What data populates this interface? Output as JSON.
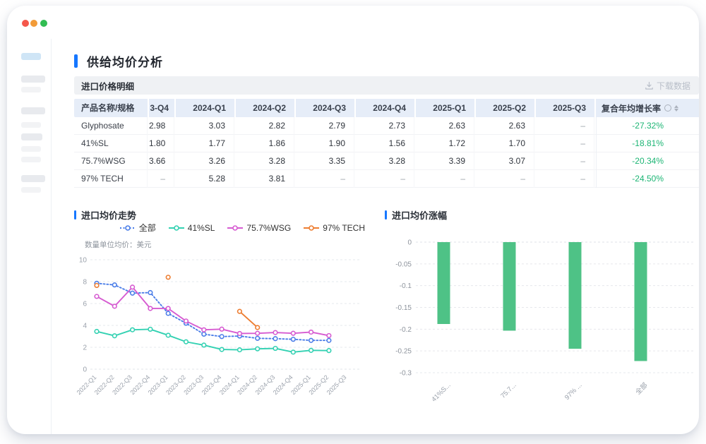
{
  "page_title": "供给均价分析",
  "colors": {
    "accent": "#1677ff",
    "positive_green_text": "#1cb574",
    "bar_green": "#4ec286",
    "table_header_bg": "#e6edf8",
    "traffic_red": "#f4574b",
    "traffic_orange": "#f29b38",
    "traffic_green": "#31bd52"
  },
  "table": {
    "section_title": "进口价格明细",
    "download_label": "下载数据",
    "columns": [
      "产品名称/规格",
      "3-Q4",
      "2024-Q1",
      "2024-Q2",
      "2024-Q3",
      "2024-Q4",
      "2025-Q1",
      "2025-Q2",
      "2025-Q3",
      "复合年均增长率"
    ],
    "rows": [
      {
        "name": "Glyphosate",
        "values": [
          "2.98",
          "3.03",
          "2.82",
          "2.79",
          "2.73",
          "2.63",
          "2.63",
          "–"
        ],
        "cagr": "-27.32%"
      },
      {
        "name": "41%SL",
        "values": [
          "1.80",
          "1.77",
          "1.86",
          "1.90",
          "1.56",
          "1.72",
          "1.70",
          "–"
        ],
        "cagr": "-18.81%"
      },
      {
        "name": "75.7%WSG",
        "values": [
          "3.66",
          "3.26",
          "3.28",
          "3.35",
          "3.28",
          "3.39",
          "3.07",
          "–"
        ],
        "cagr": "-20.34%"
      },
      {
        "name": "97% TECH",
        "values": [
          "–",
          "5.28",
          "3.81",
          "–",
          "–",
          "–",
          "–",
          "–"
        ],
        "cagr": "-24.50%"
      }
    ]
  },
  "chart_data": [
    {
      "type": "line",
      "title": "进口均价走势",
      "unit_note": "数量单位均价：美元",
      "categories": [
        "2022-Q1",
        "2022-Q2",
        "2022-Q3",
        "2022-Q4",
        "2023-Q1",
        "2023-Q2",
        "2023-Q3",
        "2023-Q4",
        "2024-Q1",
        "2024-Q2",
        "2024-Q3",
        "2024-Q4",
        "2025-Q1",
        "2025-Q2",
        "2025-Q3"
      ],
      "ylim": [
        0,
        10
      ],
      "yticks": [
        0,
        2,
        4,
        6,
        8,
        10
      ],
      "grid": "dashed",
      "legend_position": "top-right",
      "series": [
        {
          "name": "全部",
          "color": "#4a7de8",
          "style": "dotted",
          "values": [
            7.85,
            7.7,
            6.95,
            7.0,
            5.1,
            4.2,
            3.2,
            2.98,
            3.03,
            2.82,
            2.79,
            2.73,
            2.63,
            2.63,
            null
          ]
        },
        {
          "name": "41%SL",
          "color": "#33d1b2",
          "style": "solid",
          "values": [
            3.45,
            3.05,
            3.6,
            3.65,
            3.1,
            2.5,
            2.2,
            1.8,
            1.77,
            1.86,
            1.9,
            1.56,
            1.72,
            1.7,
            null
          ]
        },
        {
          "name": "75.7%WSG",
          "color": "#d65bd1",
          "style": "solid",
          "values": [
            6.65,
            5.75,
            7.5,
            5.55,
            5.55,
            4.4,
            3.6,
            3.66,
            3.26,
            3.28,
            3.35,
            3.28,
            3.39,
            3.07,
            null
          ]
        },
        {
          "name": "97% TECH",
          "color": "#ed7d31",
          "style": "solid",
          "values": [
            7.65,
            null,
            null,
            null,
            8.4,
            null,
            null,
            null,
            5.28,
            3.81,
            null,
            null,
            null,
            null,
            null
          ]
        }
      ]
    },
    {
      "type": "bar",
      "title": "进口均价涨幅",
      "categories": [
        "41%S...",
        "75.7...",
        "97% ...",
        "全部"
      ],
      "values": [
        -0.1881,
        -0.2034,
        -0.245,
        -0.2732
      ],
      "ylim": [
        -0.3,
        0
      ],
      "yticks": [
        0,
        -0.05,
        -0.1,
        -0.15,
        -0.2,
        -0.25,
        -0.3
      ],
      "grid": "dashed",
      "bar_color": "#4ec286"
    }
  ]
}
